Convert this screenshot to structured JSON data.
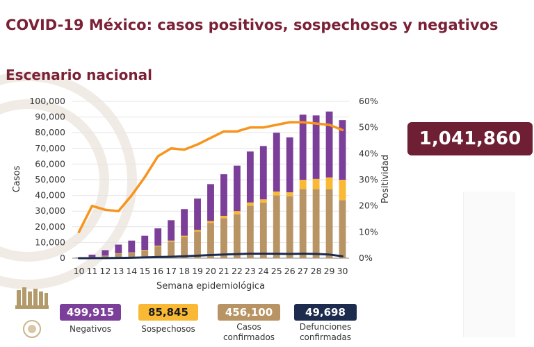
{
  "header": {
    "title": "COVID-19 México: casos positivos, sospechosos y negativos",
    "subtitle": "Escenario nacional"
  },
  "total": {
    "value": "1,041,860"
  },
  "colors": {
    "accent": "#6e1f33",
    "negativos": "#7b3f99",
    "sospechosos": "#f9b934",
    "confirmados": "#b89465",
    "defunciones": "#1c2b4e",
    "positividad": "#f7941d"
  },
  "summary": [
    {
      "value": "499,915",
      "label": "Negativos"
    },
    {
      "value": "85,845",
      "label": "Sospechosos"
    },
    {
      "value": "456,100",
      "label": "Casos confirmados"
    },
    {
      "value": "49,698",
      "label": "Defunciones confirmadas"
    }
  ],
  "chart_data": {
    "type": "bar",
    "stacked": true,
    "xlabel": "Semana epidemiológica",
    "ylabel": "Casos",
    "y2label": "Positividad",
    "ylim": [
      0,
      100000
    ],
    "y2lim": [
      0,
      60
    ],
    "yticks": [
      "0",
      "10,000",
      "20,000",
      "30,000",
      "40,000",
      "50,000",
      "60,000",
      "70,000",
      "80,000",
      "90,000",
      "100,000"
    ],
    "y2ticks": [
      "0%",
      "10%",
      "20%",
      "30%",
      "40%",
      "50%",
      "60%"
    ],
    "categories": [
      "10",
      "11",
      "12",
      "13",
      "14",
      "15",
      "16",
      "17",
      "18",
      "19",
      "20",
      "21",
      "22",
      "23",
      "24",
      "25",
      "26",
      "27",
      "28",
      "29",
      "30"
    ],
    "series": [
      {
        "kind": "bar",
        "values": [
          200,
          700,
          1500,
          3000,
          3500,
          5000,
          7500,
          10500,
          13500,
          17000,
          22500,
          25500,
          28000,
          33500,
          35500,
          40000,
          39500,
          44000,
          44000,
          44000,
          37000
        ]
      },
      {
        "kind": "bar",
        "values": [
          20,
          50,
          100,
          150,
          200,
          300,
          500,
          700,
          800,
          1000,
          1200,
          1500,
          2000,
          2000,
          2000,
          2500,
          2500,
          6000,
          6500,
          7500,
          13000
        ]
      },
      {
        "kind": "bar",
        "values": [
          200,
          1500,
          3500,
          5500,
          7500,
          9000,
          11000,
          13000,
          17000,
          20000,
          23500,
          26500,
          29000,
          32500,
          34000,
          37500,
          35000,
          41500,
          40500,
          42000,
          38000
        ]
      },
      {
        "kind": "line",
        "axis": "y2",
        "values": [
          10,
          20,
          18.5,
          18,
          24,
          31,
          39,
          42,
          41.5,
          43.5,
          46,
          48.5,
          48.5,
          50,
          50,
          51,
          52,
          52,
          51.5,
          51,
          49
        ]
      },
      {
        "kind": "line",
        "axis": "y",
        "values": [
          0,
          30,
          80,
          150,
          300,
          500,
          700,
          900,
          1200,
          1600,
          2000,
          2300,
          2600,
          2900,
          2900,
          2800,
          2700,
          2900,
          2700,
          2300,
          1200
        ]
      }
    ]
  }
}
